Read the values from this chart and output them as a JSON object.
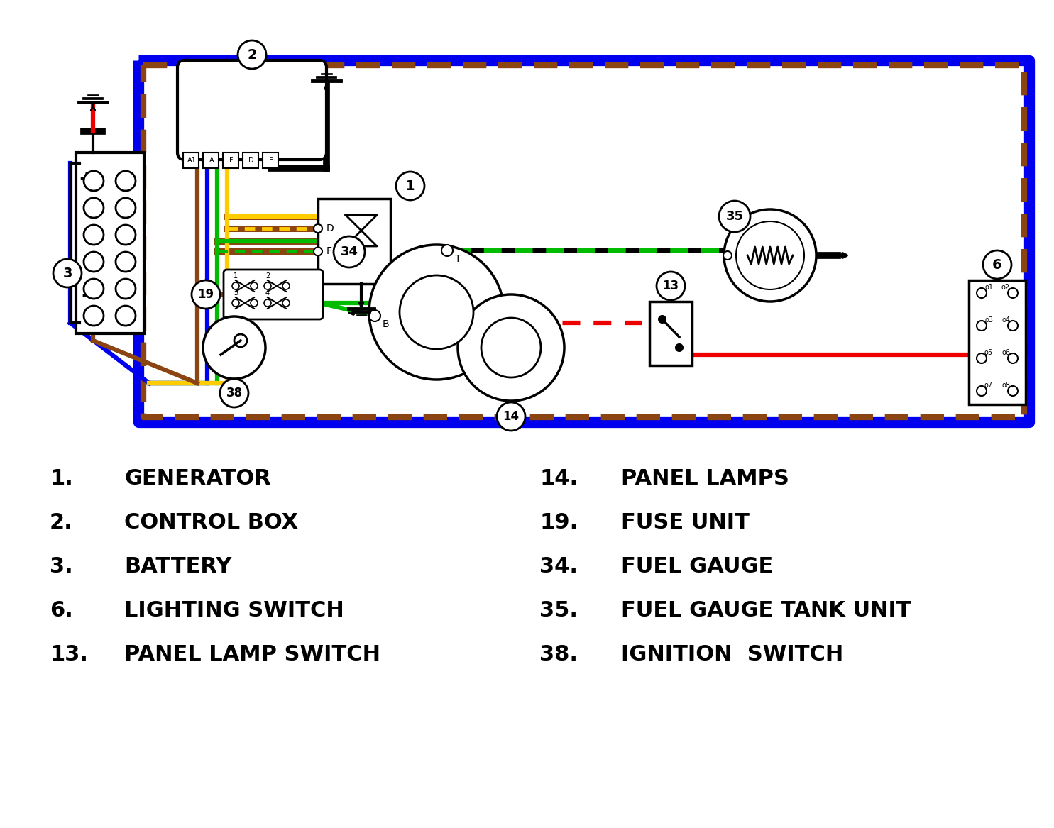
{
  "bg_color": "#ffffff",
  "wire_blue": "#0000ee",
  "wire_brown": "#8B4513",
  "wire_green": "#00bb00",
  "wire_yellow": "#ffcc00",
  "wire_red": "#ee0000",
  "wire_black": "#000000",
  "border_blue": "#0000ee",
  "border_brown": "#8B4513",
  "legend_left": [
    [
      "1.",
      "GENERATOR"
    ],
    [
      "2.",
      "CONTROL BOX"
    ],
    [
      "3.",
      "BATTERY"
    ],
    [
      "6.",
      "LIGHTING SWITCH"
    ],
    [
      "13.",
      "PANEL LAMP SWITCH"
    ]
  ],
  "legend_right": [
    [
      "14.",
      "PANEL LAMPS"
    ],
    [
      "19.",
      "FUSE UNIT"
    ],
    [
      "34.",
      "FUEL GAUGE"
    ],
    [
      "35.",
      "FUEL GAUGE TANK UNIT"
    ],
    [
      "38.",
      "IGNITION  SWITCH"
    ]
  ]
}
